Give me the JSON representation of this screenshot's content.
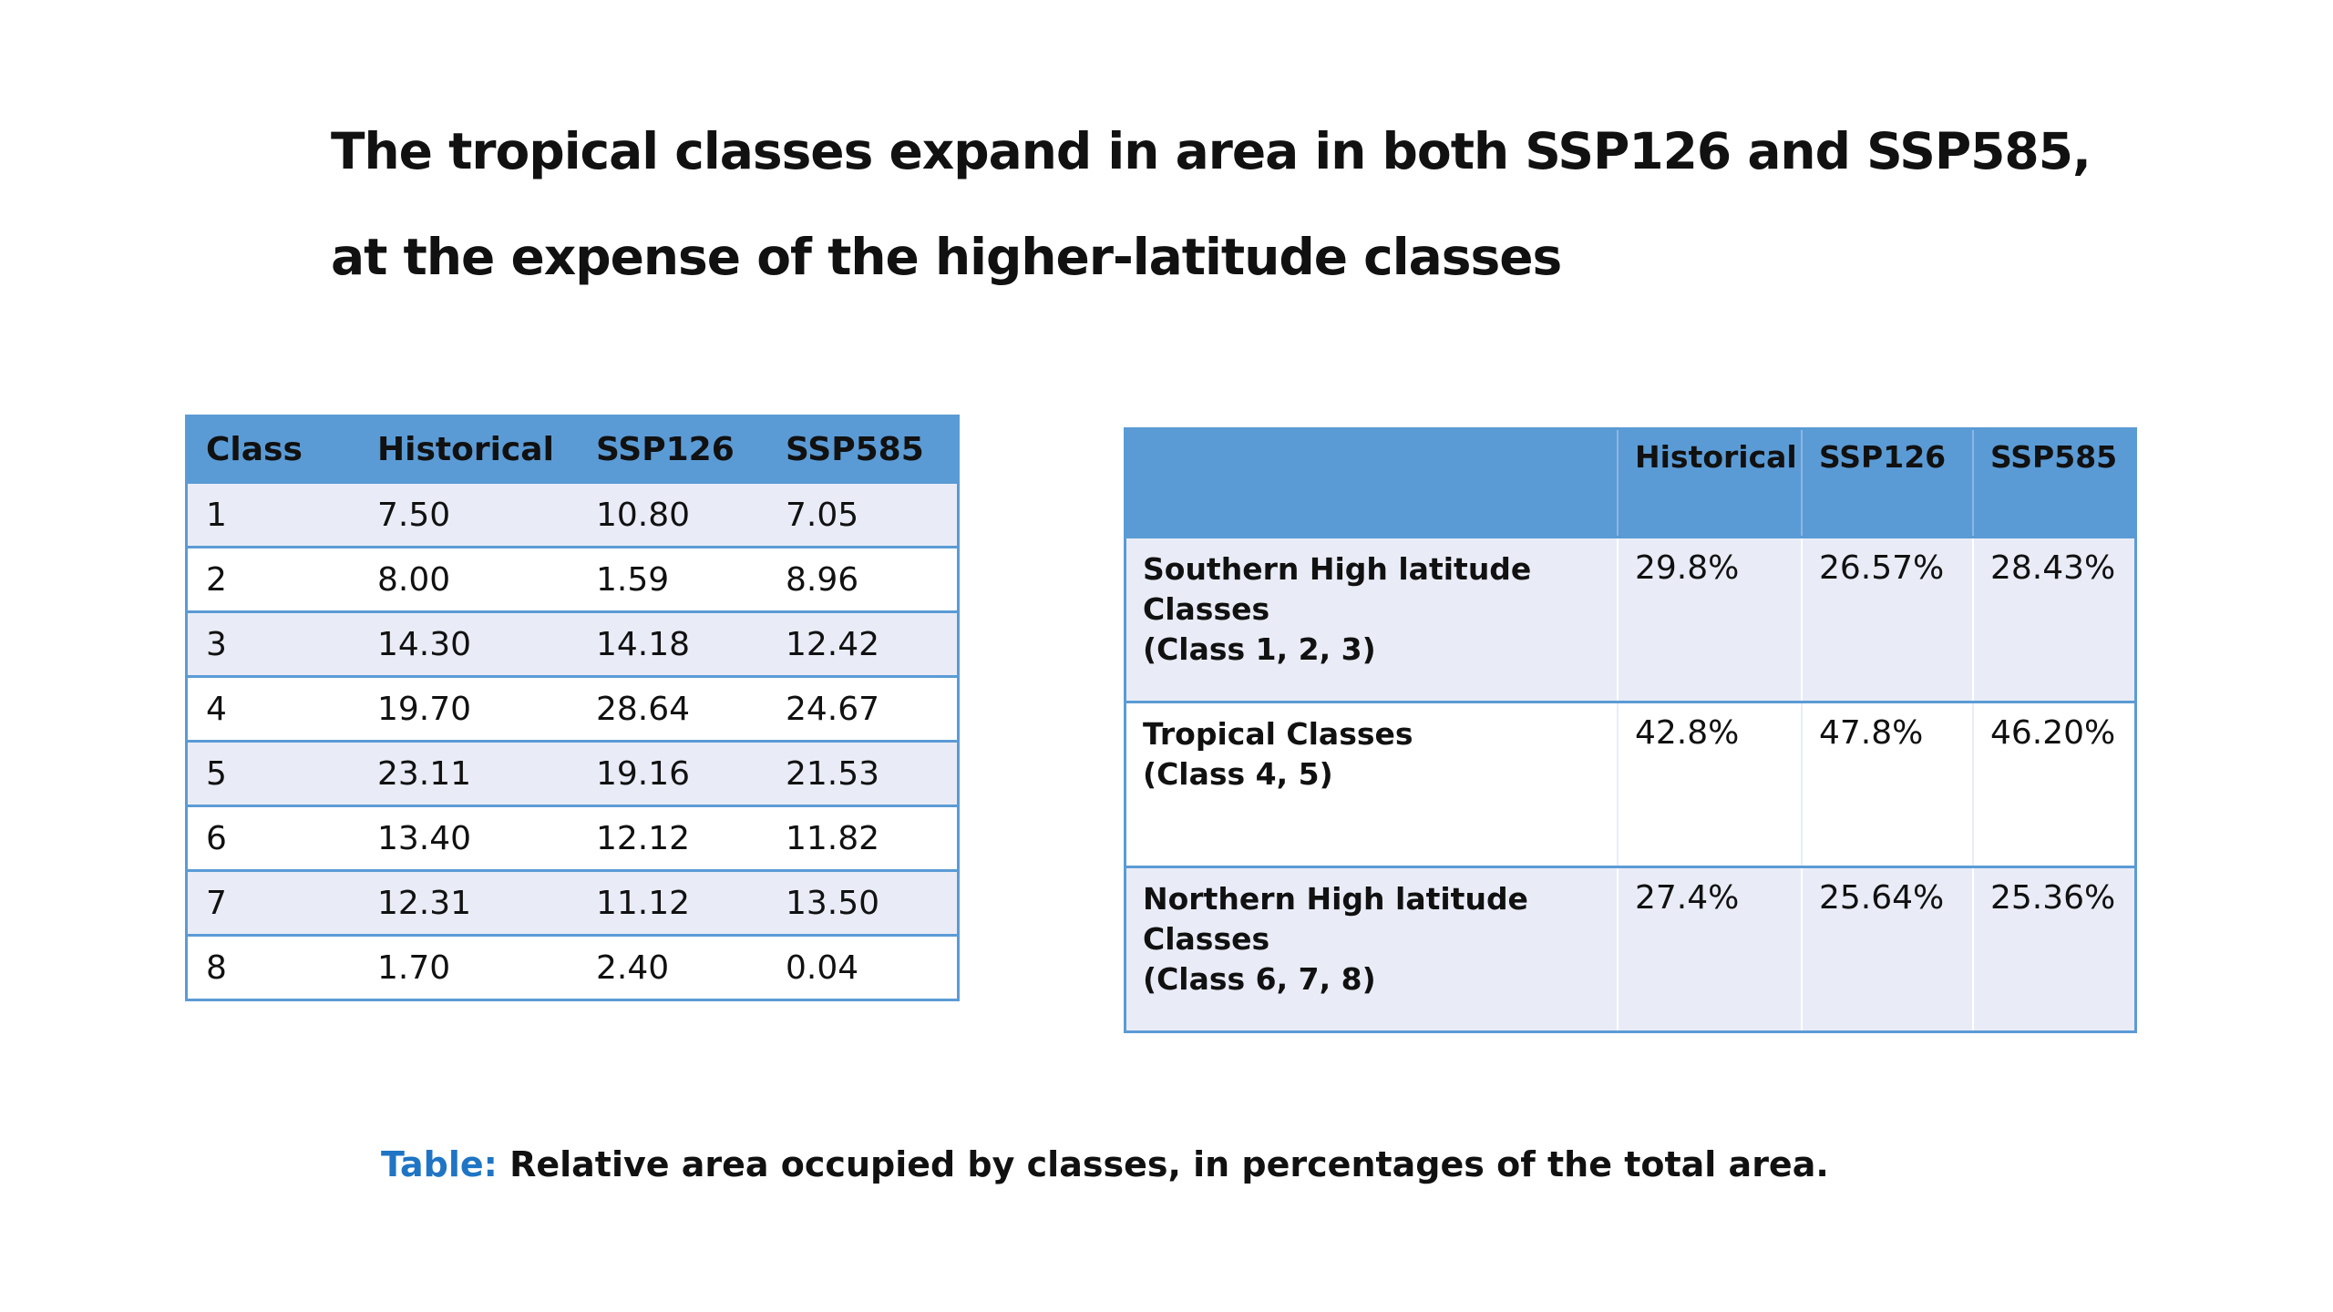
{
  "title": {
    "line1": "The tropical classes expand in area in both SSP126 and SSP585,",
    "line2": "at the expense of the higher-latitude classes"
  },
  "class_table": {
    "headers": [
      "Class",
      "Historical",
      "SSP126",
      "SSP585"
    ],
    "rows": [
      [
        "1",
        "7.50",
        "10.80",
        "7.05"
      ],
      [
        "2",
        "8.00",
        "1.59",
        "8.96"
      ],
      [
        "3",
        "14.30",
        "14.18",
        "12.42"
      ],
      [
        "4",
        "19.70",
        "28.64",
        "24.67"
      ],
      [
        "5",
        "23.11",
        "19.16",
        "21.53"
      ],
      [
        "6",
        "13.40",
        "12.12",
        "11.82"
      ],
      [
        "7",
        "12.31",
        "11.12",
        "13.50"
      ],
      [
        "8",
        "1.70",
        "2.40",
        "0.04"
      ]
    ]
  },
  "group_table": {
    "headers": [
      "",
      "Historical",
      "SSP126",
      "SSP585"
    ],
    "rows": [
      {
        "label_line1": "Southern High latitude Classes",
        "label_line2": "(Class 1, 2, 3)",
        "values": [
          "29.8%",
          "26.57%",
          "28.43%"
        ]
      },
      {
        "label_line1": "Tropical Classes",
        "label_line2": "(Class 4, 5)",
        "values": [
          "42.8%",
          "47.8%",
          "46.20%"
        ]
      },
      {
        "label_line1": "Northern High latitude Classes",
        "label_line2": "(Class 6, 7, 8)",
        "values": [
          "27.4%",
          "25.64%",
          "25.36%"
        ]
      }
    ]
  },
  "caption": {
    "prefix": "Table:",
    "text": " Relative area occupied by classes, in percentages of the total area."
  },
  "colors": {
    "header_blue": "#5b9bd5",
    "band_light": "#e9ecf6",
    "caption_blue": "#1f75c4"
  }
}
